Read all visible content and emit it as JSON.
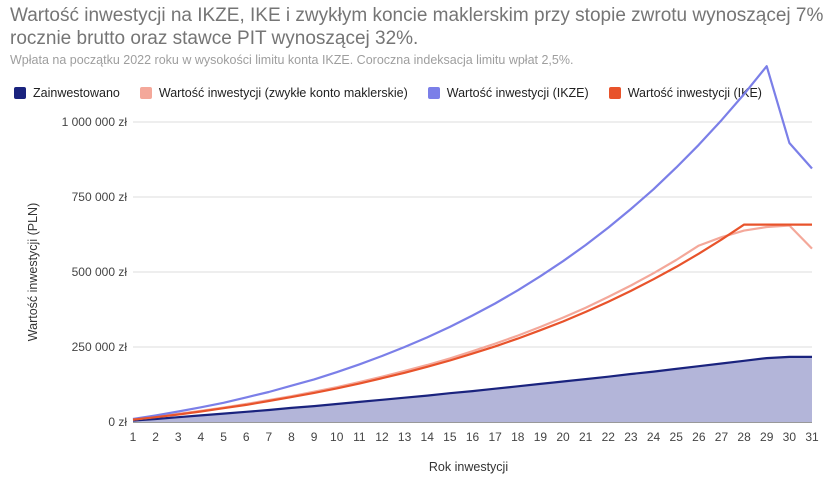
{
  "chart_data": {
    "type": "line",
    "title": "Wartość inwestycji na IKZE, IKE i zwykłym koncie maklerskim przy stopie zwrotu wynoszącej 7% rocznie brutto oraz stawce PIT wynoszącej 32%.",
    "subtitle": "Wpłata na początku 2022 roku w wysokości limitu konta IKZE. Coroczna indeksacja limitu wpłat 2,5%.",
    "xlabel": "Rok inwestycji",
    "ylabel": "Wartość inwestycji (PLN)",
    "x": [
      1,
      2,
      3,
      4,
      5,
      6,
      7,
      8,
      9,
      10,
      11,
      12,
      13,
      14,
      15,
      16,
      17,
      18,
      19,
      20,
      21,
      22,
      23,
      24,
      25,
      26,
      27,
      28,
      29,
      30,
      31
    ],
    "xlim": [
      1,
      31
    ],
    "ylim": [
      0,
      1000000
    ],
    "y_ticks": [
      0,
      250000,
      500000,
      750000,
      1000000
    ],
    "y_tick_labels": [
      "0 zł",
      "250 000 zł",
      "500 000 zł",
      "750 000 zł",
      "1 000 000 zł"
    ],
    "grid": true,
    "legend_position": "top",
    "series": [
      {
        "name": "Zainwestowano",
        "color": "#1a237e",
        "fill": "#b3b5d9",
        "style": "area",
        "values": [
          5000,
          10000,
          16000,
          22000,
          28000,
          34000,
          40000,
          47000,
          53000,
          60000,
          67000,
          74000,
          81000,
          88000,
          96000,
          103000,
          111000,
          119000,
          127000,
          135000,
          143000,
          151000,
          160000,
          168000,
          177000,
          186000,
          195000,
          204000,
          213000,
          217000,
          217000
        ]
      },
      {
        "name": "Wartość inwestycji (zwykłe konto maklerskie)",
        "color": "#f4a89a",
        "style": "line",
        "values": [
          8000,
          17000,
          27000,
          37000,
          48000,
          60000,
          73000,
          86000,
          101000,
          116000,
          133000,
          151000,
          170000,
          190000,
          212000,
          236000,
          261000,
          288000,
          317000,
          348000,
          381000,
          417000,
          455000,
          496000,
          540000,
          588000,
          616000,
          638000,
          650000,
          655000,
          578000
        ]
      },
      {
        "name": "Wartość inwestycji (IKZE)",
        "color": "#7b7fe8",
        "style": "line",
        "values": [
          10000,
          22000,
          35000,
          49000,
          64000,
          82000,
          100000,
          121000,
          142000,
          166000,
          192000,
          220000,
          250000,
          282000,
          317000,
          355000,
          395000,
          439000,
          486000,
          536000,
          590000,
          648000,
          710000,
          776000,
          848000,
          924000,
          1006000,
          1093000,
          1186000,
          930000,
          845000
        ]
      },
      {
        "name": "Wartość inwestycji (IKE)",
        "color": "#e8532b",
        "style": "line",
        "values": [
          8000,
          16000,
          25000,
          35000,
          46000,
          57000,
          70000,
          83000,
          97000,
          112000,
          128000,
          146000,
          164000,
          184000,
          205000,
          228000,
          252000,
          278000,
          306000,
          335000,
          367000,
          401000,
          437000,
          476000,
          517000,
          561000,
          608000,
          658000,
          658000,
          658000,
          658000
        ]
      }
    ]
  }
}
